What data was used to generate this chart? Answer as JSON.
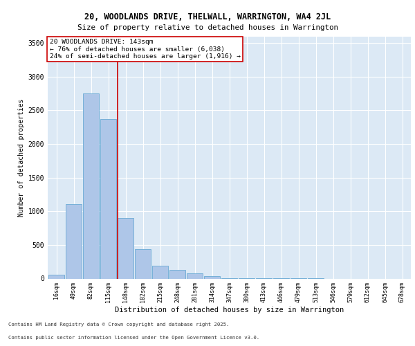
{
  "title1": "20, WOODLANDS DRIVE, THELWALL, WARRINGTON, WA4 2JL",
  "title2": "Size of property relative to detached houses in Warrington",
  "xlabel": "Distribution of detached houses by size in Warrington",
  "ylabel": "Number of detached properties",
  "categories": [
    "16sqm",
    "49sqm",
    "82sqm",
    "115sqm",
    "148sqm",
    "182sqm",
    "215sqm",
    "248sqm",
    "281sqm",
    "314sqm",
    "347sqm",
    "380sqm",
    "413sqm",
    "446sqm",
    "479sqm",
    "513sqm",
    "546sqm",
    "579sqm",
    "612sqm",
    "645sqm",
    "678sqm"
  ],
  "values": [
    60,
    1110,
    2750,
    2370,
    900,
    440,
    195,
    130,
    80,
    35,
    10,
    5,
    3,
    2,
    1,
    1,
    0,
    0,
    0,
    0,
    0
  ],
  "bar_color": "#aec6e8",
  "bar_edge_color": "#6aaad4",
  "vline_x_index": 4,
  "vline_color": "#cc0000",
  "annotation_text": "20 WOODLANDS DRIVE: 143sqm\n← 76% of detached houses are smaller (6,038)\n24% of semi-detached houses are larger (1,916) →",
  "annotation_box_color": "#ffffff",
  "annotation_box_edge": "#cc0000",
  "ylim": [
    0,
    3600
  ],
  "yticks": [
    0,
    500,
    1000,
    1500,
    2000,
    2500,
    3000,
    3500
  ],
  "background_color": "#dce9f5",
  "footer1": "Contains HM Land Registry data © Crown copyright and database right 2025.",
  "footer2": "Contains public sector information licensed under the Open Government Licence v3.0."
}
